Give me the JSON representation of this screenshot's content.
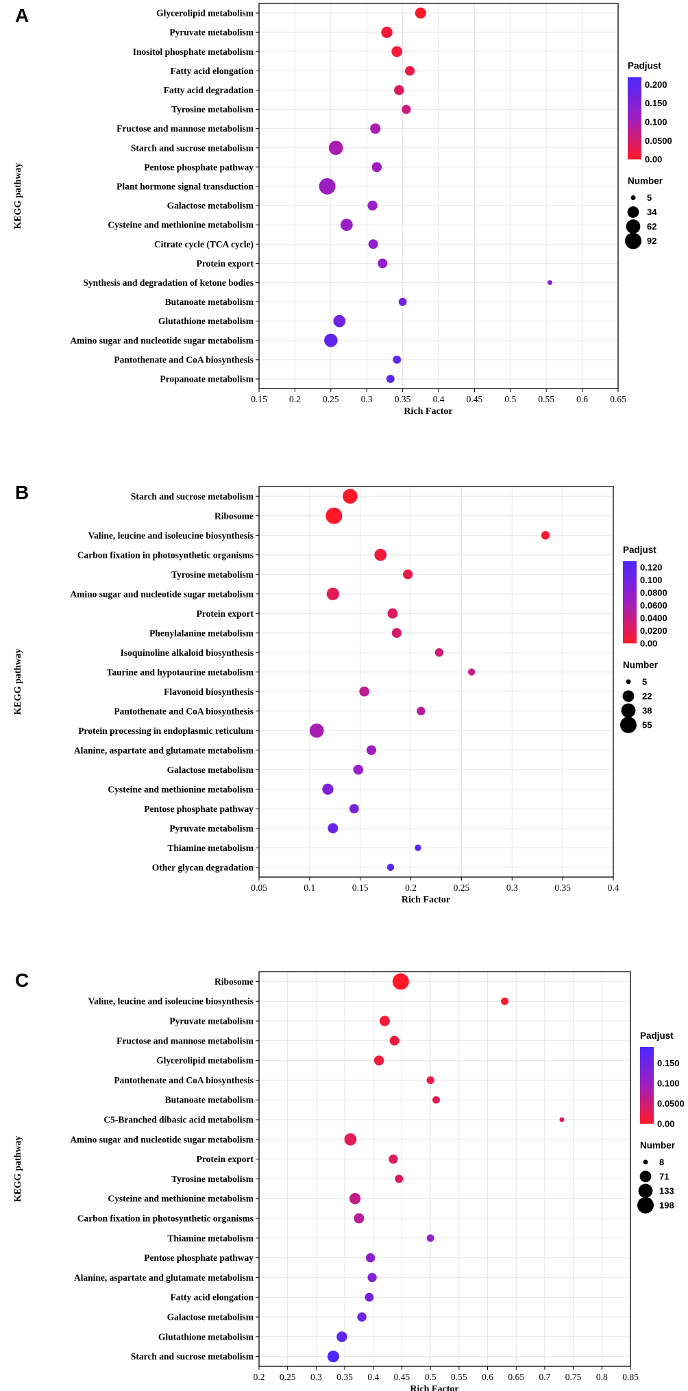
{
  "chart_data": [
    {
      "panel": "A",
      "type": "scatter",
      "xlabel": "Rich Factor",
      "ylabel": "KEGG pathway",
      "xlim": [
        0.15,
        0.65
      ],
      "xticks": [
        "0.15",
        "0.2",
        "0.25",
        "0.3",
        "0.35",
        "0.4",
        "0.45",
        "0.5",
        "0.55",
        "0.6",
        "0.65"
      ],
      "color_legend": {
        "title": "Padjust",
        "min": 0,
        "max": 0.22,
        "ticks": [
          "0.200",
          "0.150",
          "0.100",
          "0.0500",
          "0.00"
        ],
        "tick_values": [
          0.2,
          0.15,
          0.1,
          0.05,
          0
        ]
      },
      "size_legend": {
        "title": "Number",
        "labels": [
          "5",
          "34",
          "62",
          "92"
        ],
        "values": [
          5,
          34,
          62,
          92
        ]
      },
      "points": [
        {
          "pathway": "Glycerolipid metabolism",
          "rich_factor": 0.375,
          "number": 30,
          "padjust": 0.0
        },
        {
          "pathway": "Pyruvate metabolism",
          "rich_factor": 0.328,
          "number": 32,
          "padjust": 0.01
        },
        {
          "pathway": "Inositol phosphate metabolism",
          "rich_factor": 0.342,
          "number": 28,
          "padjust": 0.015
        },
        {
          "pathway": "Fatty acid elongation",
          "rich_factor": 0.36,
          "number": 20,
          "padjust": 0.02
        },
        {
          "pathway": "Fatty acid degradation",
          "rich_factor": 0.345,
          "number": 22,
          "padjust": 0.04
        },
        {
          "pathway": "Tyrosine metabolism",
          "rich_factor": 0.355,
          "number": 17,
          "padjust": 0.06
        },
        {
          "pathway": "Fructose and mannose metabolism",
          "rich_factor": 0.312,
          "number": 25,
          "padjust": 0.1
        },
        {
          "pathway": "Starch and sucrose metabolism",
          "rich_factor": 0.257,
          "number": 62,
          "padjust": 0.1
        },
        {
          "pathway": "Pentose phosphate pathway",
          "rich_factor": 0.314,
          "number": 22,
          "padjust": 0.11
        },
        {
          "pathway": "Plant hormone signal transduction",
          "rich_factor": 0.245,
          "number": 92,
          "padjust": 0.115
        },
        {
          "pathway": "Galactose metabolism",
          "rich_factor": 0.308,
          "number": 22,
          "padjust": 0.12
        },
        {
          "pathway": "Cysteine and methionine metabolism",
          "rich_factor": 0.272,
          "number": 40,
          "padjust": 0.12
        },
        {
          "pathway": "Citrate cycle (TCA cycle)",
          "rich_factor": 0.309,
          "number": 20,
          "padjust": 0.13
        },
        {
          "pathway": "Protein export",
          "rich_factor": 0.322,
          "number": 20,
          "padjust": 0.13
        },
        {
          "pathway": "Synthesis and degradation of ketone bodies",
          "rich_factor": 0.555,
          "number": 5,
          "padjust": 0.14
        },
        {
          "pathway": "Butanoate metabolism",
          "rich_factor": 0.35,
          "number": 12,
          "padjust": 0.17
        },
        {
          "pathway": "Glutathione metabolism",
          "rich_factor": 0.262,
          "number": 40,
          "padjust": 0.17
        },
        {
          "pathway": "Amino sugar and nucleotide sugar metabolism",
          "rich_factor": 0.25,
          "number": 52,
          "padjust": 0.19
        },
        {
          "pathway": "Pantothenate and CoA biosynthesis",
          "rich_factor": 0.342,
          "number": 12,
          "padjust": 0.19
        },
        {
          "pathway": "Propanoate metabolism",
          "rich_factor": 0.333,
          "number": 12,
          "padjust": 0.2
        }
      ]
    },
    {
      "panel": "B",
      "type": "scatter",
      "xlabel": "Rich Factor",
      "ylabel": "KEGG pathway",
      "xlim": [
        0.05,
        0.4
      ],
      "xticks": [
        "0.05",
        "0.1",
        "0.15",
        "0.2",
        "0.25",
        "0.3",
        "0.35",
        "0.4"
      ],
      "color_legend": {
        "title": "Padjust",
        "min": 0,
        "max": 0.13,
        "ticks": [
          "0.120",
          "0.100",
          "0.0800",
          "0.0600",
          "0.0400",
          "0.0200",
          "0.00"
        ],
        "tick_values": [
          0.12,
          0.1,
          0.08,
          0.06,
          0.04,
          0.02,
          0
        ]
      },
      "size_legend": {
        "title": "Number",
        "labels": [
          "5",
          "22",
          "38",
          "55"
        ],
        "values": [
          5,
          22,
          38,
          55
        ]
      },
      "points": [
        {
          "pathway": "Starch and sucrose metabolism",
          "rich_factor": 0.14,
          "number": 42,
          "padjust": 0.0
        },
        {
          "pathway": "Ribosome",
          "rich_factor": 0.124,
          "number": 55,
          "padjust": 0.0
        },
        {
          "pathway": "Valine, leucine and isoleucine biosynthesis",
          "rich_factor": 0.333,
          "number": 10,
          "padjust": 0.005
        },
        {
          "pathway": "Carbon fixation in photosynthetic organisms",
          "rich_factor": 0.17,
          "number": 25,
          "padjust": 0.01
        },
        {
          "pathway": "Tyrosine metabolism",
          "rich_factor": 0.197,
          "number": 14,
          "padjust": 0.015
        },
        {
          "pathway": "Amino sugar and nucleotide sugar metabolism",
          "rich_factor": 0.123,
          "number": 27,
          "padjust": 0.02
        },
        {
          "pathway": "Protein export",
          "rich_factor": 0.182,
          "number": 16,
          "padjust": 0.025
        },
        {
          "pathway": "Phenylalanine metabolism",
          "rich_factor": 0.186,
          "number": 14,
          "padjust": 0.03
        },
        {
          "pathway": "Isoquinoline alkaloid biosynthesis",
          "rich_factor": 0.228,
          "number": 10,
          "padjust": 0.035
        },
        {
          "pathway": "Taurine and hypotaurine metabolism",
          "rich_factor": 0.26,
          "number": 7,
          "padjust": 0.04
        },
        {
          "pathway": "Flavonoid biosynthesis",
          "rich_factor": 0.154,
          "number": 15,
          "padjust": 0.045
        },
        {
          "pathway": "Pantothenate and CoA biosynthesis",
          "rich_factor": 0.21,
          "number": 10,
          "padjust": 0.05
        },
        {
          "pathway": "Protein processing in endoplasmic reticulum",
          "rich_factor": 0.107,
          "number": 38,
          "padjust": 0.06
        },
        {
          "pathway": "Alanine, aspartate and glutamate metabolism",
          "rich_factor": 0.161,
          "number": 14,
          "padjust": 0.065
        },
        {
          "pathway": "Galactose metabolism",
          "rich_factor": 0.148,
          "number": 15,
          "padjust": 0.07
        },
        {
          "pathway": "Cysteine and methionine metabolism",
          "rich_factor": 0.118,
          "number": 20,
          "padjust": 0.09
        },
        {
          "pathway": "Pentose phosphate pathway",
          "rich_factor": 0.144,
          "number": 13,
          "padjust": 0.095
        },
        {
          "pathway": "Pyruvate metabolism",
          "rich_factor": 0.123,
          "number": 16,
          "padjust": 0.105
        },
        {
          "pathway": "Thiamine metabolism",
          "rich_factor": 0.207,
          "number": 6,
          "padjust": 0.12
        },
        {
          "pathway": "Other glycan degradation",
          "rich_factor": 0.18,
          "number": 7,
          "padjust": 0.125
        }
      ]
    },
    {
      "panel": "C",
      "type": "scatter",
      "xlabel": "Rich Factor",
      "ylabel": "KEGG pathway",
      "xlim": [
        0.2,
        0.85
      ],
      "xticks": [
        "0.2",
        "0.25",
        "0.3",
        "0.35",
        "0.4",
        "0.45",
        "0.5",
        "0.55",
        "0.6",
        "0.65",
        "0.7",
        "0.75",
        "0.8",
        "0.85"
      ],
      "color_legend": {
        "title": "Padjust",
        "min": 0,
        "max": 0.19,
        "ticks": [
          "0.150",
          "0.100",
          "0.0500",
          "0.00"
        ],
        "tick_values": [
          0.15,
          0.1,
          0.05,
          0
        ]
      },
      "size_legend": {
        "title": "Number",
        "labels": [
          "8",
          "71",
          "133",
          "198"
        ],
        "values": [
          8,
          71,
          133,
          198
        ]
      },
      "points": [
        {
          "pathway": "Ribosome",
          "rich_factor": 0.448,
          "number": 198,
          "padjust": 0.0
        },
        {
          "pathway": "Valine, leucine and isoleucine biosynthesis",
          "rich_factor": 0.63,
          "number": 18,
          "padjust": 0.005
        },
        {
          "pathway": "Pyruvate metabolism",
          "rich_factor": 0.42,
          "number": 50,
          "padjust": 0.01
        },
        {
          "pathway": "Fructose and mannose metabolism",
          "rich_factor": 0.437,
          "number": 40,
          "padjust": 0.015
        },
        {
          "pathway": "Glycerolipid metabolism",
          "rich_factor": 0.41,
          "number": 45,
          "padjust": 0.015
        },
        {
          "pathway": "Pantothenate and CoA biosynthesis",
          "rich_factor": 0.5,
          "number": 20,
          "padjust": 0.02
        },
        {
          "pathway": "Butanoate metabolism",
          "rich_factor": 0.51,
          "number": 18,
          "padjust": 0.025
        },
        {
          "pathway": "C5-Branched dibasic acid metabolism",
          "rich_factor": 0.73,
          "number": 8,
          "padjust": 0.025
        },
        {
          "pathway": "Amino sugar and nucleotide sugar metabolism",
          "rich_factor": 0.36,
          "number": 85,
          "padjust": 0.03
        },
        {
          "pathway": "Protein export",
          "rich_factor": 0.435,
          "number": 35,
          "padjust": 0.035
        },
        {
          "pathway": "Tyrosine metabolism",
          "rich_factor": 0.445,
          "number": 25,
          "padjust": 0.035
        },
        {
          "pathway": "Cysteine and methionine metabolism",
          "rich_factor": 0.368,
          "number": 65,
          "padjust": 0.06
        },
        {
          "pathway": "Carbon fixation in photosynthetic organisms",
          "rich_factor": 0.375,
          "number": 50,
          "padjust": 0.07
        },
        {
          "pathway": "Thiamine metabolism",
          "rich_factor": 0.5,
          "number": 18,
          "padjust": 0.11
        },
        {
          "pathway": "Pentose phosphate pathway",
          "rich_factor": 0.395,
          "number": 35,
          "padjust": 0.12
        },
        {
          "pathway": "Alanine, aspartate and glutamate metabolism",
          "rich_factor": 0.398,
          "number": 35,
          "padjust": 0.13
        },
        {
          "pathway": "Fatty acid elongation",
          "rich_factor": 0.393,
          "number": 30,
          "padjust": 0.14
        },
        {
          "pathway": "Galactose metabolism",
          "rich_factor": 0.38,
          "number": 35,
          "padjust": 0.15
        },
        {
          "pathway": "Glutathione metabolism",
          "rich_factor": 0.345,
          "number": 55,
          "padjust": 0.17
        },
        {
          "pathway": "Starch and sucrose metabolism",
          "rich_factor": 0.33,
          "number": 75,
          "padjust": 0.185
        }
      ]
    }
  ]
}
